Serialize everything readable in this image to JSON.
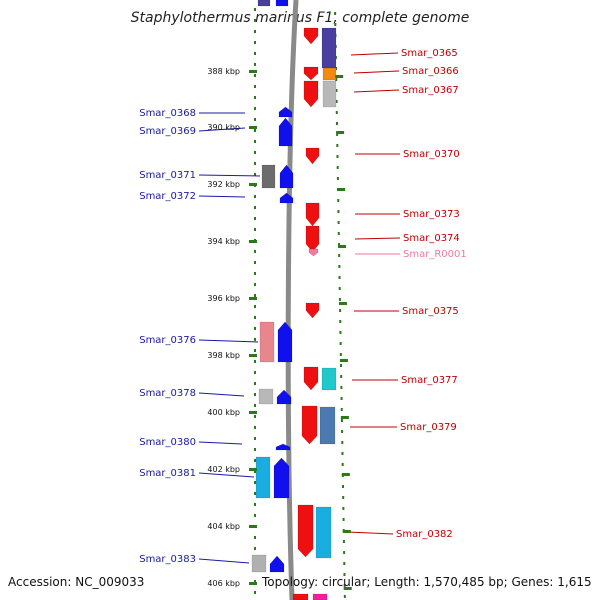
{
  "title": "Staphylothermus marinus F1, complete genome",
  "footer": {
    "accession": "Accession: NC_009033",
    "stats": "Topology: circular; Length: 1,570,485 bp; Genes: 1,615"
  },
  "colors": {
    "forward_gene": "#1010ee",
    "reverse_gene": "#ee1010",
    "rna_gene": "#f07aa0",
    "left_label": "#1a1aa6",
    "right_label": "#c00000",
    "ruler_tick": "#2a7a1a",
    "backbone": "#8a8a8a"
  },
  "ruler": {
    "unit": "kbp",
    "ticks": [
      "388 kbp",
      "390 kbp",
      "392 kbp",
      "394 kbp",
      "396 kbp",
      "398 kbp",
      "400 kbp",
      "402 kbp",
      "404 kbp",
      "406 kbp"
    ]
  },
  "genes_left": [
    "Smar_0368",
    "Smar_0369",
    "Smar_0371",
    "Smar_0372",
    "Smar_0376",
    "Smar_0378",
    "Smar_0380",
    "Smar_0381",
    "Smar_0383"
  ],
  "genes_right": [
    "Smar_0365",
    "Smar_0366",
    "Smar_0367",
    "Smar_0370",
    "Smar_0373",
    "Smar_0374",
    "Smar_R0001",
    "Smar_0375",
    "Smar_0377",
    "Smar_0379",
    "Smar_0382"
  ]
}
